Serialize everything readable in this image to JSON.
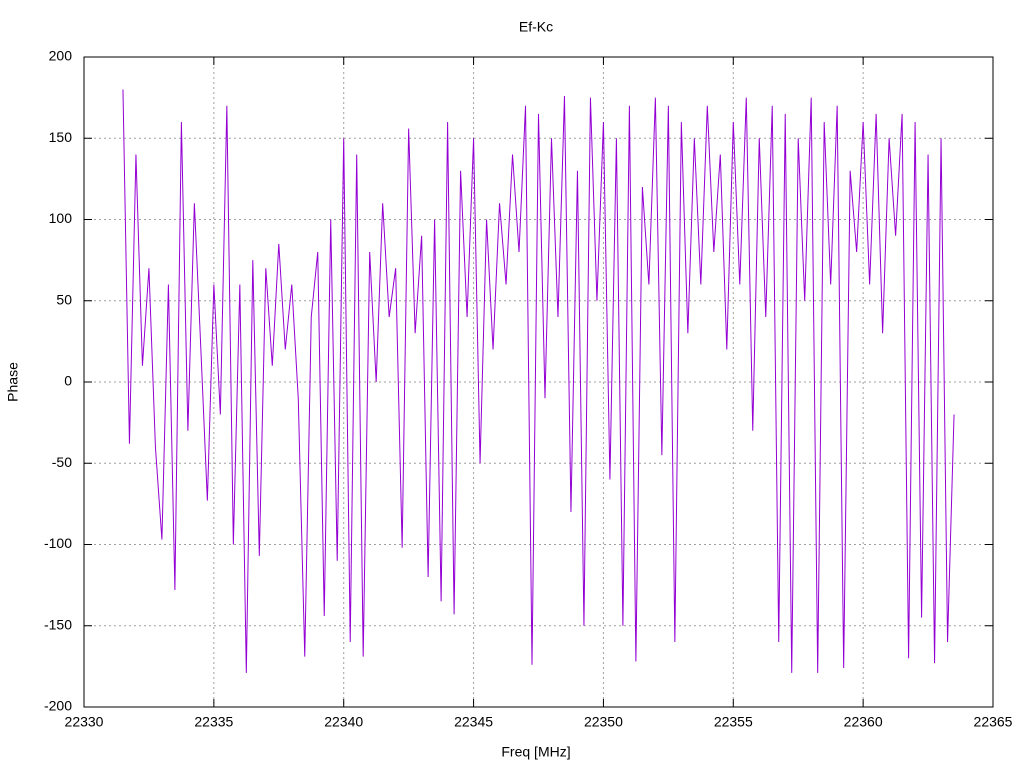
{
  "chart_data": {
    "type": "line",
    "title": "Ef-Kc",
    "x_label": "Freq [MHz]",
    "y_label": "Phase",
    "color": "#9400d3",
    "grid": true,
    "xlim": [
      22330,
      22365
    ],
    "xticks": [
      22330,
      22335,
      22340,
      22345,
      22350,
      22355,
      22360,
      22365
    ],
    "ylim": [
      -200,
      200
    ],
    "yticks": [
      -200,
      -150,
      -100,
      -50,
      0,
      50,
      100,
      150,
      200
    ],
    "x": [
      22331.5,
      22331.75,
      22332,
      22332.25,
      22332.5,
      22332.75,
      22333,
      22333.25,
      22333.5,
      22333.75,
      22334,
      22334.25,
      22334.5,
      22334.75,
      22335,
      22335.25,
      22335.5,
      22335.75,
      22336,
      22336.25,
      22336.5,
      22336.75,
      22337,
      22337.25,
      22337.5,
      22337.75,
      22338,
      22338.25,
      22338.5,
      22338.75,
      22339,
      22339.25,
      22339.5,
      22339.75,
      22340,
      22340.25,
      22340.5,
      22340.75,
      22341,
      22341.25,
      22341.5,
      22341.75,
      22342,
      22342.25,
      22342.5,
      22342.75,
      22343,
      22343.25,
      22343.5,
      22343.75,
      22344,
      22344.25,
      22344.5,
      22344.75,
      22345,
      22345.25,
      22345.5,
      22345.75,
      22346,
      22346.25,
      22346.5,
      22346.75,
      22347,
      22347.25,
      22347.5,
      22347.75,
      22348,
      22348.25,
      22348.5,
      22348.75,
      22349,
      22349.25,
      22349.5,
      22349.75,
      22350,
      22350.25,
      22350.5,
      22350.75,
      22351,
      22351.25,
      22351.5,
      22351.75,
      22352,
      22352.25,
      22352.5,
      22352.75,
      22353,
      22353.25,
      22353.5,
      22353.75,
      22354,
      22354.25,
      22354.5,
      22354.75,
      22355,
      22355.25,
      22355.5,
      22355.75,
      22356,
      22356.25,
      22356.5,
      22356.75,
      22357,
      22357.25,
      22357.5,
      22357.75,
      22358,
      22358.25,
      22358.5,
      22358.75,
      22359,
      22359.25,
      22359.5,
      22359.75,
      22360,
      22360.25,
      22360.5,
      22360.75,
      22361,
      22361.25,
      22361.5,
      22361.75,
      22362,
      22362.25,
      22362.5,
      22362.75,
      22363,
      22363.25,
      22363.5
    ],
    "values": [
      180,
      -38,
      140,
      10,
      70,
      -40,
      -97,
      60,
      -128,
      160,
      -30,
      110,
      20,
      -73,
      60,
      -20,
      170,
      -100,
      60,
      -179,
      75,
      -107,
      70,
      10,
      85,
      20,
      60,
      -10,
      -169,
      40,
      80,
      -144,
      100,
      -110,
      150,
      -160,
      140,
      -169,
      80,
      0,
      110,
      40,
      70,
      -102,
      156,
      30,
      90,
      -120,
      100,
      -135,
      160,
      -143,
      130,
      40,
      150,
      -50,
      100,
      20,
      110,
      60,
      140,
      80,
      170,
      -174,
      165,
      -10,
      150,
      40,
      176,
      -80,
      130,
      -150,
      175,
      50,
      160,
      -60,
      150,
      -150,
      170,
      -172,
      120,
      60,
      175,
      -45,
      170,
      -160,
      160,
      30,
      150,
      60,
      170,
      80,
      140,
      20,
      160,
      60,
      175,
      -30,
      150,
      40,
      170,
      -160,
      165,
      -179,
      150,
      50,
      175,
      -179,
      160,
      60,
      170,
      -176,
      130,
      80,
      160,
      60,
      165,
      30,
      150,
      90,
      165,
      -170,
      160,
      -145,
      140,
      -173,
      150,
      -160,
      -20
    ]
  }
}
